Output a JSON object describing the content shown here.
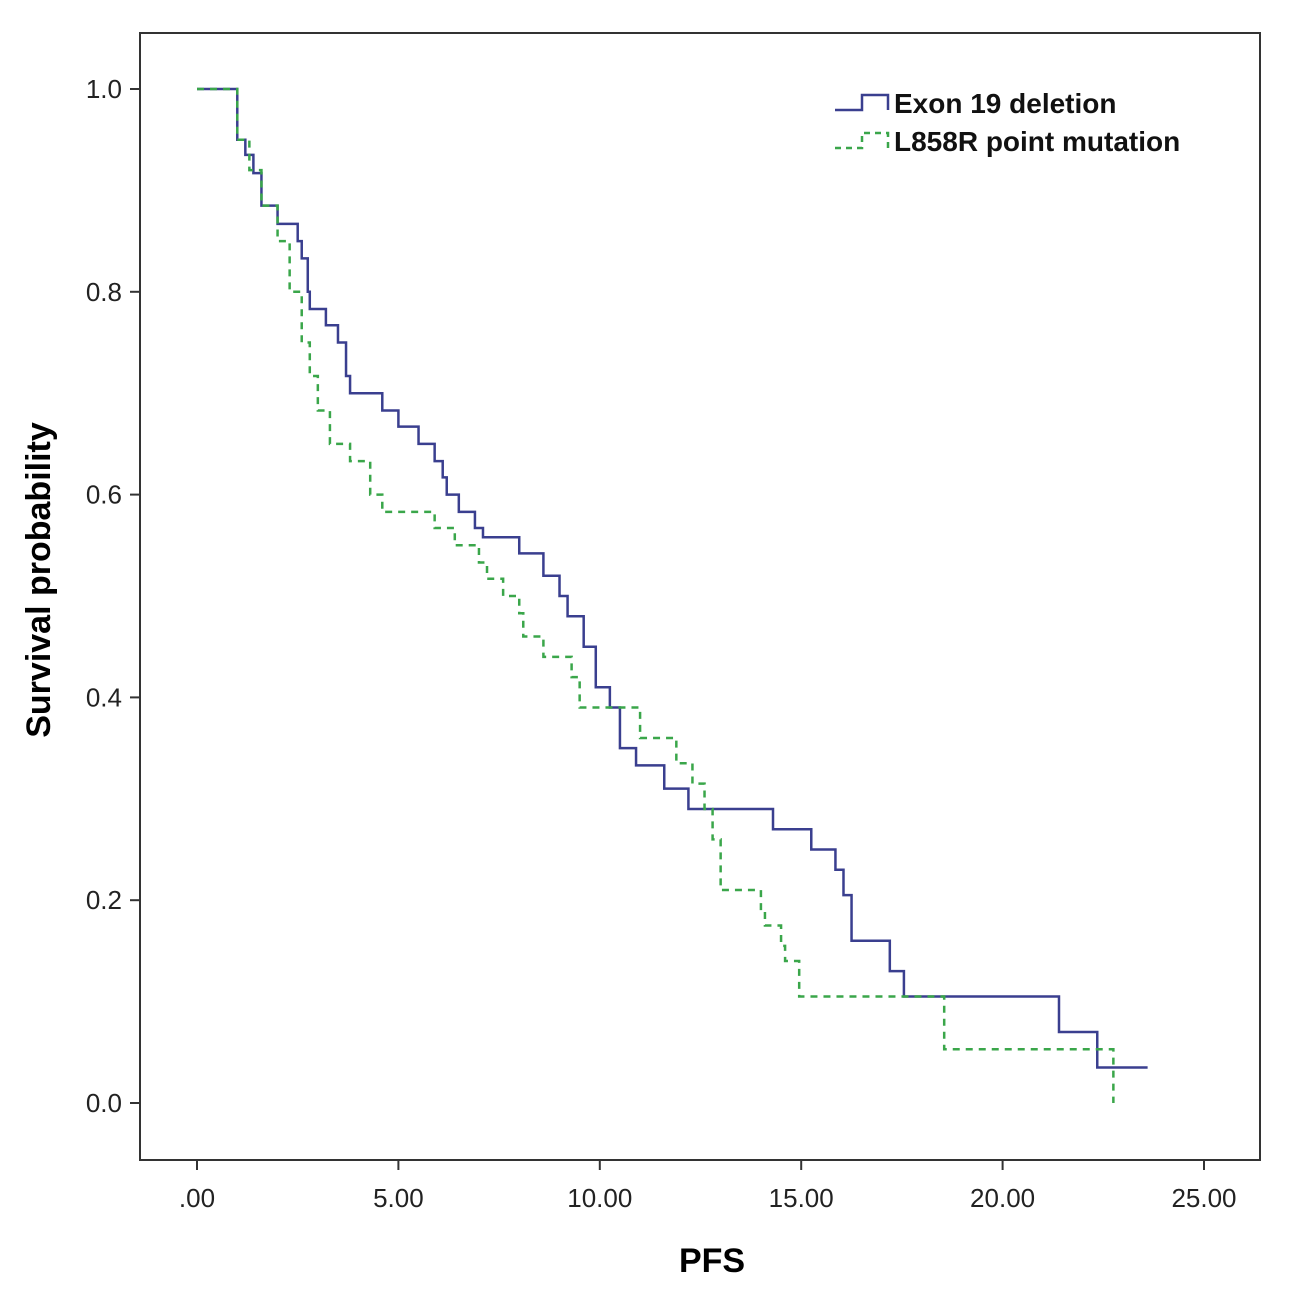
{
  "chart_data": {
    "type": "line",
    "subtype": "kaplan-meier step",
    "xlabel": "PFS",
    "ylabel": "Survival probability",
    "xlim": [
      0,
      25
    ],
    "ylim": [
      0,
      1
    ],
    "xticks": [
      ".00",
      "5.00",
      "10.00",
      "15.00",
      "20.00",
      "25.00"
    ],
    "xtick_values": [
      0,
      5,
      10,
      15,
      20,
      25
    ],
    "yticks": [
      "0.0",
      "0.2",
      "0.4",
      "0.6",
      "0.8",
      "1.0"
    ],
    "ytick_values": [
      0,
      0.2,
      0.4,
      0.6,
      0.8,
      1.0
    ],
    "grid": false,
    "legend_position": "top-right",
    "series": [
      {
        "name": "Exon 19 deletion",
        "color": "#3a3f8f",
        "style": "solid",
        "points": [
          [
            0,
            1.0
          ],
          [
            1.0,
            0.95
          ],
          [
            1.2,
            0.935
          ],
          [
            1.4,
            0.917
          ],
          [
            1.6,
            0.885
          ],
          [
            2.0,
            0.867
          ],
          [
            2.5,
            0.85
          ],
          [
            2.6,
            0.833
          ],
          [
            2.75,
            0.8
          ],
          [
            2.8,
            0.783
          ],
          [
            3.2,
            0.767
          ],
          [
            3.5,
            0.75
          ],
          [
            3.7,
            0.717
          ],
          [
            3.8,
            0.7
          ],
          [
            4.6,
            0.683
          ],
          [
            5.0,
            0.667
          ],
          [
            5.5,
            0.65
          ],
          [
            5.9,
            0.633
          ],
          [
            6.1,
            0.617
          ],
          [
            6.2,
            0.6
          ],
          [
            6.5,
            0.583
          ],
          [
            6.9,
            0.567
          ],
          [
            7.1,
            0.558
          ],
          [
            8.0,
            0.542
          ],
          [
            8.6,
            0.52
          ],
          [
            9.0,
            0.5
          ],
          [
            9.2,
            0.48
          ],
          [
            9.6,
            0.45
          ],
          [
            9.9,
            0.41
          ],
          [
            10.25,
            0.39
          ],
          [
            10.5,
            0.35
          ],
          [
            10.9,
            0.333
          ],
          [
            11.6,
            0.31
          ],
          [
            12.2,
            0.29
          ],
          [
            14.3,
            0.27
          ],
          [
            15.25,
            0.25
          ],
          [
            15.85,
            0.23
          ],
          [
            16.05,
            0.205
          ],
          [
            16.25,
            0.16
          ],
          [
            17.2,
            0.13
          ],
          [
            17.55,
            0.105
          ],
          [
            21.4,
            0.07
          ],
          [
            22.35,
            0.035
          ],
          [
            23.6,
            0.035
          ]
        ]
      },
      {
        "name": "L858R point mutation",
        "color": "#3aa64a",
        "style": "dashed",
        "points": [
          [
            0,
            1.0
          ],
          [
            1.0,
            0.95
          ],
          [
            1.3,
            0.92
          ],
          [
            1.6,
            0.885
          ],
          [
            2.0,
            0.85
          ],
          [
            2.3,
            0.8
          ],
          [
            2.6,
            0.75
          ],
          [
            2.8,
            0.717
          ],
          [
            3.0,
            0.683
          ],
          [
            3.3,
            0.65
          ],
          [
            3.8,
            0.633
          ],
          [
            4.3,
            0.6
          ],
          [
            4.6,
            0.583
          ],
          [
            5.9,
            0.567
          ],
          [
            6.4,
            0.55
          ],
          [
            7.0,
            0.533
          ],
          [
            7.2,
            0.517
          ],
          [
            7.6,
            0.5
          ],
          [
            8.0,
            0.483
          ],
          [
            8.1,
            0.46
          ],
          [
            8.6,
            0.44
          ],
          [
            9.3,
            0.42
          ],
          [
            9.5,
            0.39
          ],
          [
            11.0,
            0.36
          ],
          [
            11.9,
            0.335
          ],
          [
            12.3,
            0.315
          ],
          [
            12.6,
            0.29
          ],
          [
            12.8,
            0.26
          ],
          [
            13.0,
            0.21
          ],
          [
            14.0,
            0.19
          ],
          [
            14.1,
            0.175
          ],
          [
            14.5,
            0.155
          ],
          [
            14.6,
            0.14
          ],
          [
            14.95,
            0.105
          ],
          [
            18.55,
            0.053
          ],
          [
            22.65,
            0.053
          ],
          [
            22.75,
            0.0
          ]
        ]
      }
    ]
  }
}
